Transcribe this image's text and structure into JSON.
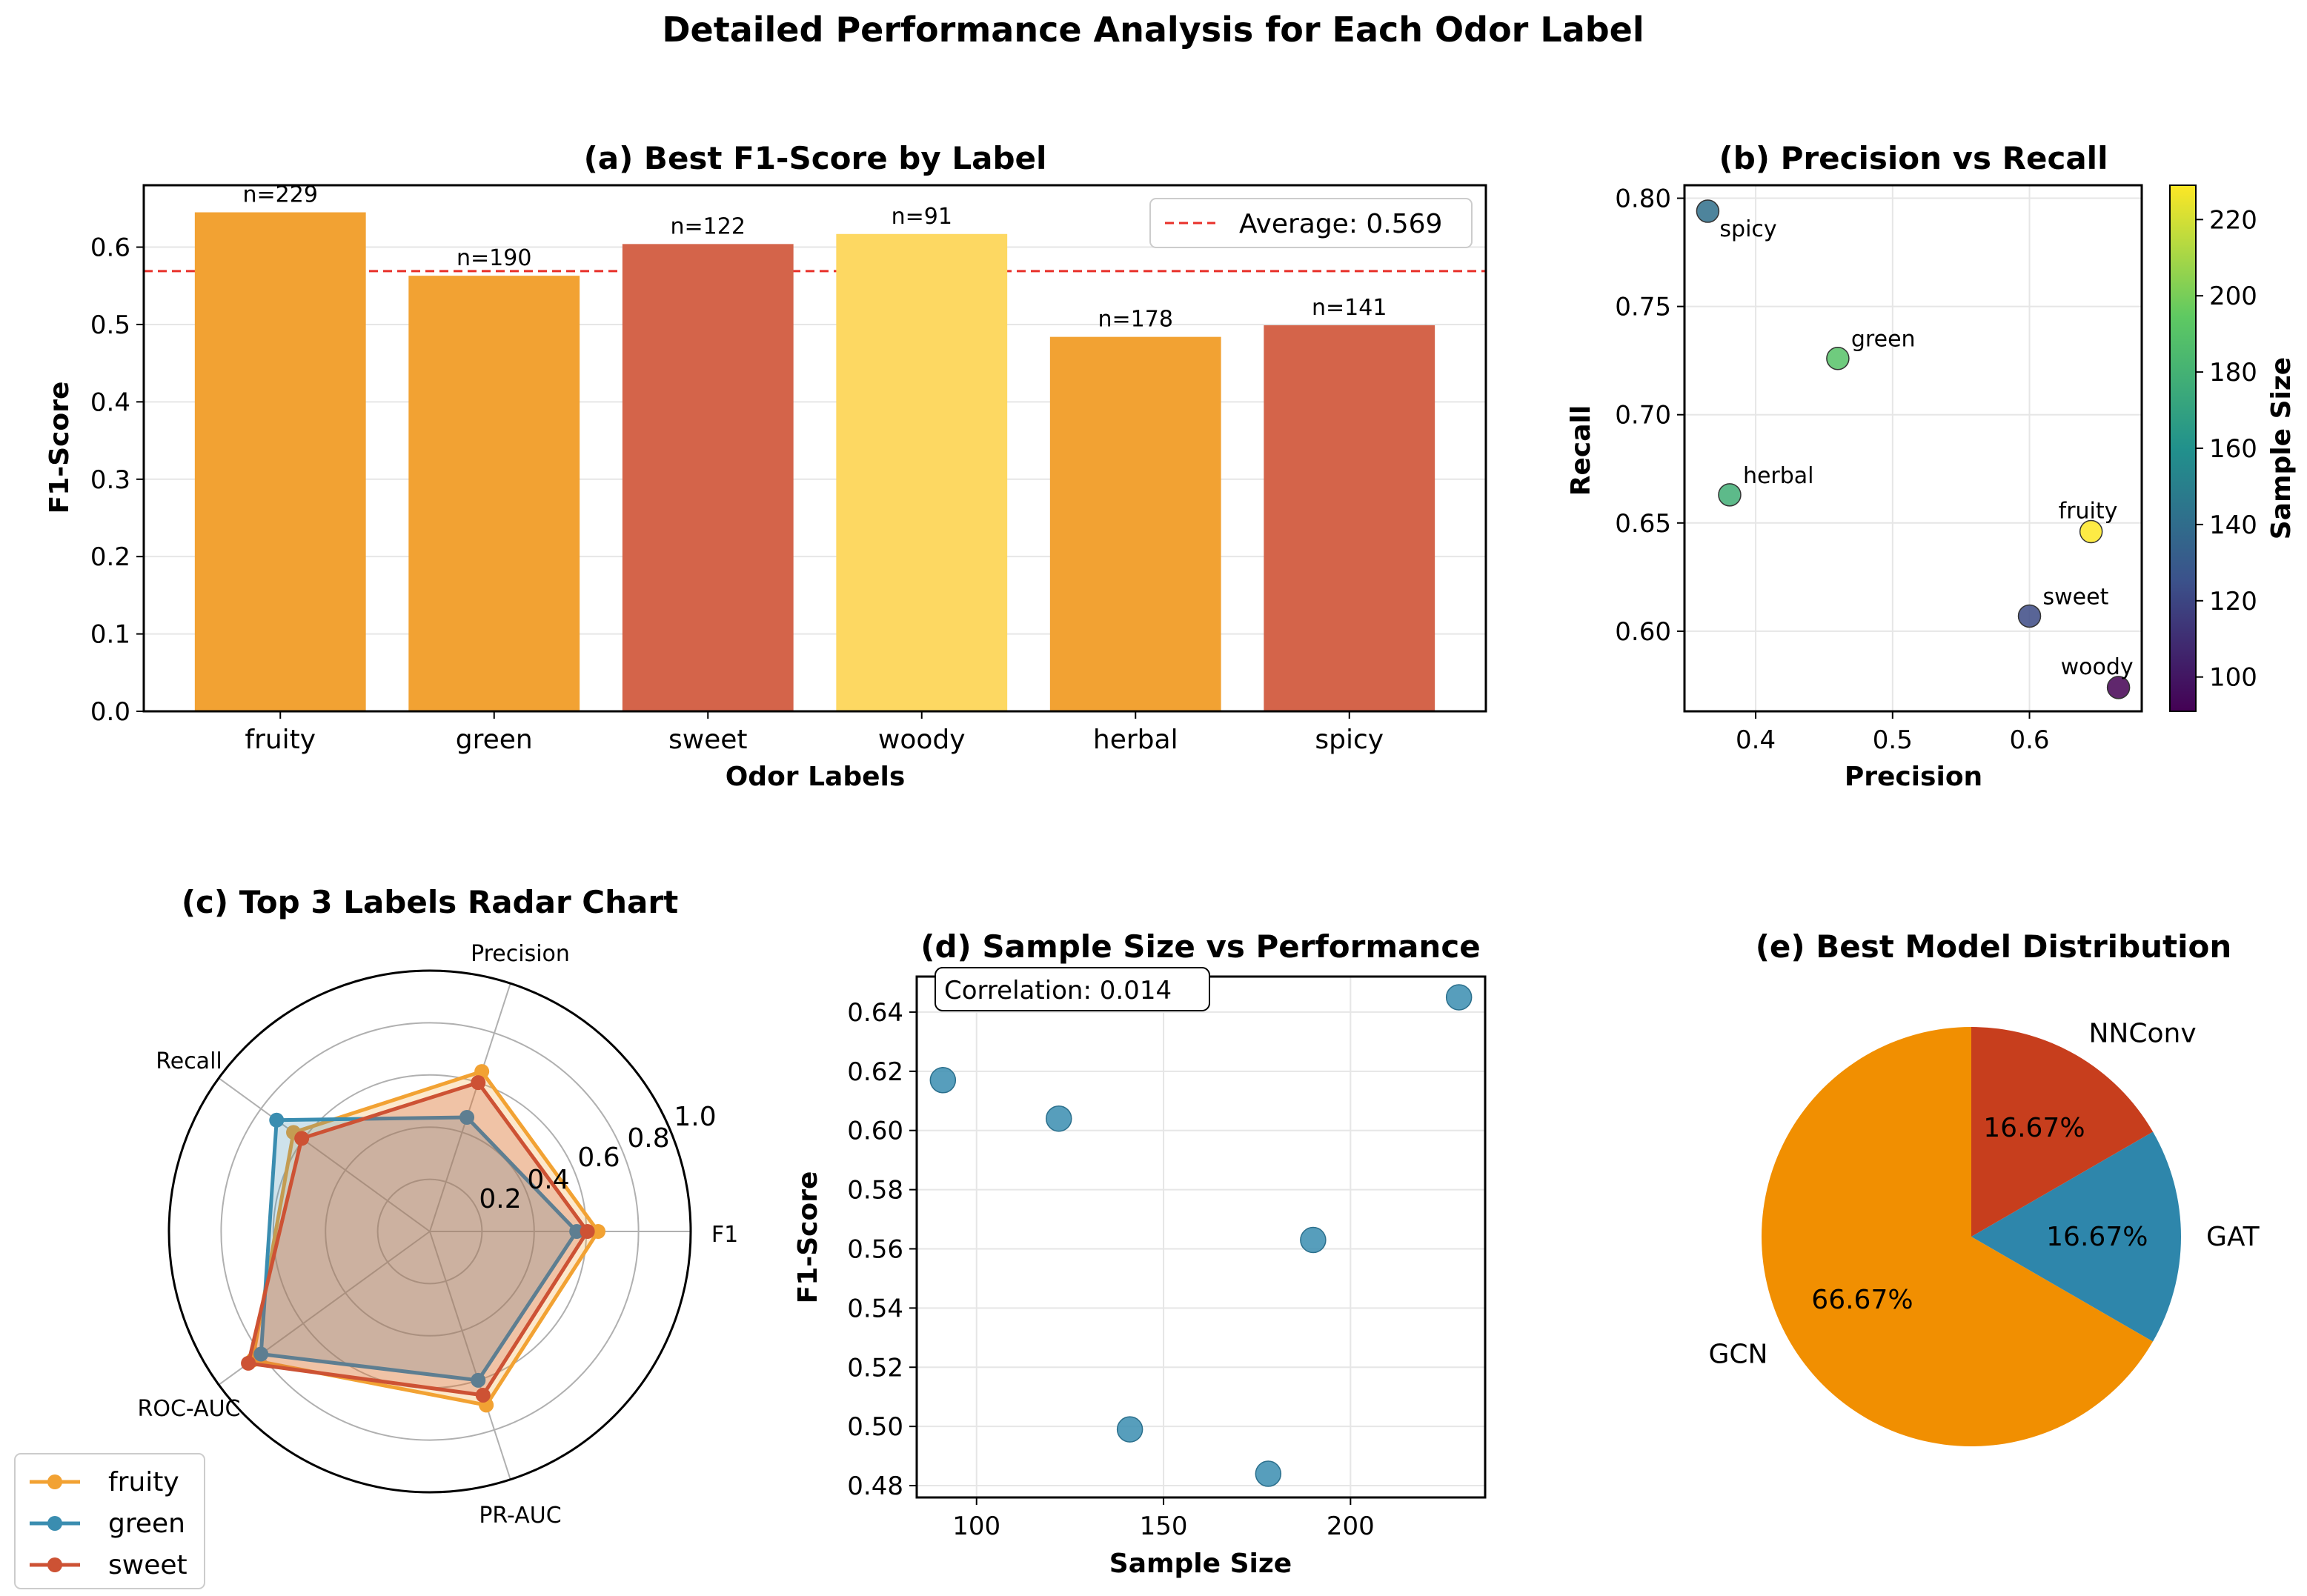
{
  "suptitle": "Detailed Performance Analysis for Each Odor Label",
  "chart_data": [
    {
      "id": "a",
      "type": "bar",
      "title": "(a) Best F1-Score by Label",
      "xlabel": "Odor Labels",
      "ylabel": "F1-Score",
      "categories": [
        "fruity",
        "green",
        "sweet",
        "woody",
        "herbal",
        "spicy"
      ],
      "values": [
        0.645,
        0.563,
        0.604,
        0.617,
        0.484,
        0.499
      ],
      "bar_labels": [
        "n=229",
        "n=190",
        "n=122",
        "n=91",
        "n=178",
        "n=141"
      ],
      "bar_colors": [
        "#F2A233",
        "#F2A233",
        "#D4644A",
        "#FDD862",
        "#F2A233",
        "#D4644A"
      ],
      "ylim": [
        0,
        0.68
      ],
      "yticks": [
        "0.0",
        "0.1",
        "0.2",
        "0.3",
        "0.4",
        "0.5",
        "0.6"
      ],
      "average": 0.569,
      "average_label": "Average: 0.569",
      "legend_position": "upper right",
      "grid": true
    },
    {
      "id": "b",
      "type": "scatter",
      "title": "(b) Precision vs Recall",
      "xlabel": "Precision",
      "ylabel": "Recall",
      "points": [
        {
          "label": "spicy",
          "x": 0.365,
          "y": 0.794,
          "n": 141
        },
        {
          "label": "green",
          "x": 0.46,
          "y": 0.726,
          "n": 190
        },
        {
          "label": "herbal",
          "x": 0.381,
          "y": 0.663,
          "n": 178
        },
        {
          "label": "fruity",
          "x": 0.645,
          "y": 0.646,
          "n": 229
        },
        {
          "label": "sweet",
          "x": 0.6,
          "y": 0.607,
          "n": 122
        },
        {
          "label": "woody",
          "x": 0.665,
          "y": 0.574,
          "n": 91
        }
      ],
      "xlim": [
        0.348,
        0.682
      ],
      "ylim": [
        0.563,
        0.806
      ],
      "xticks": [
        "0.4",
        "0.5",
        "0.6"
      ],
      "yticks": [
        "0.60",
        "0.65",
        "0.70",
        "0.75",
        "0.80"
      ],
      "colorbar_label": "Sample Size",
      "colorbar_range": [
        91,
        229
      ],
      "colorbar_ticks": [
        "100",
        "120",
        "140",
        "160",
        "180",
        "200",
        "220"
      ],
      "colormap": "viridis",
      "grid": true
    },
    {
      "id": "c",
      "type": "radar",
      "title": "(c) Top 3 Labels Radar Chart",
      "axes": [
        "F1",
        "Precision",
        "Recall",
        "ROC-AUC",
        "PR-AUC"
      ],
      "rticks": [
        "0.2",
        "0.4",
        "0.6",
        "0.8",
        "1.0"
      ],
      "series": [
        {
          "name": "fruity",
          "color": "#F2A233",
          "values": [
            0.645,
            0.645,
            0.646,
            0.84,
            0.7
          ]
        },
        {
          "name": "green",
          "color": "#3A8DB0",
          "values": [
            0.563,
            0.46,
            0.726,
            0.8,
            0.6
          ]
        },
        {
          "name": "sweet",
          "color": "#CD5234",
          "values": [
            0.604,
            0.6,
            0.607,
            0.86,
            0.66
          ]
        }
      ],
      "legend_position": "lower left"
    },
    {
      "id": "d",
      "type": "scatter",
      "title": "(d) Sample Size vs Performance",
      "xlabel": "Sample Size",
      "ylabel": "F1-Score",
      "x": [
        91,
        122,
        141,
        178,
        190,
        229
      ],
      "y": [
        0.617,
        0.604,
        0.499,
        0.484,
        0.563,
        0.645
      ],
      "xlim": [
        84,
        236
      ],
      "ylim": [
        0.476,
        0.652
      ],
      "xticks": [
        "100",
        "150",
        "200"
      ],
      "yticks": [
        "0.48",
        "0.50",
        "0.52",
        "0.54",
        "0.56",
        "0.58",
        "0.60",
        "0.62",
        "0.64"
      ],
      "annotation": "Correlation: 0.014",
      "color": "#3A8DB0",
      "grid": true
    },
    {
      "id": "e",
      "type": "pie",
      "title": "(e) Best Model Distribution",
      "slices": [
        {
          "label": "GCN",
          "value": 66.67,
          "pct": "66.67%",
          "color": "#F18F01"
        },
        {
          "label": "GAT",
          "value": 16.67,
          "pct": "16.67%",
          "color": "#2E86AB"
        },
        {
          "label": "NNConv",
          "value": 16.67,
          "pct": "16.67%",
          "color": "#C73E1D"
        }
      ]
    }
  ]
}
